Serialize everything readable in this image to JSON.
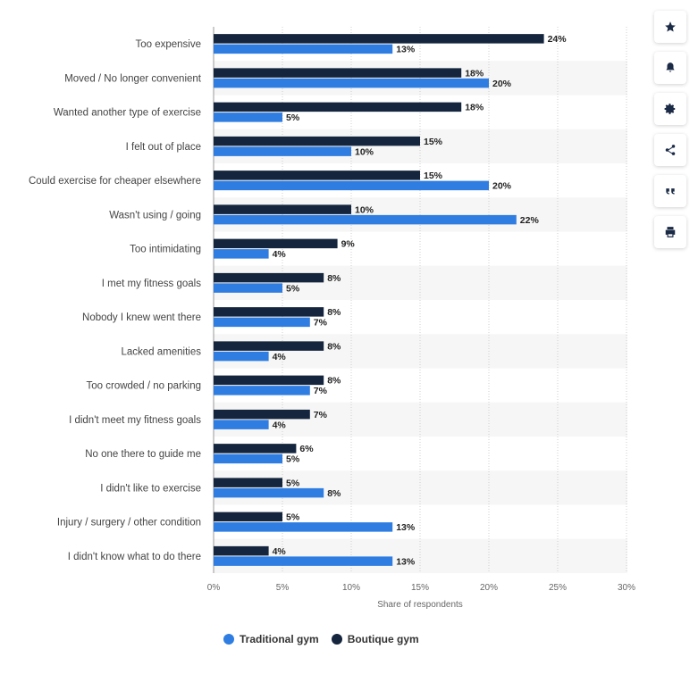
{
  "chart_data": {
    "type": "bar",
    "orientation": "horizontal",
    "title": "",
    "xlabel": "Share of respondents",
    "ylabel": "",
    "xlim": [
      0,
      30
    ],
    "x_ticks": [
      "0%",
      "5%",
      "10%",
      "15%",
      "20%",
      "25%",
      "30%"
    ],
    "x_tick_values": [
      0,
      5,
      10,
      15,
      20,
      25,
      30
    ],
    "grid": true,
    "legend_placement": "bottom",
    "value_suffix": "%",
    "categories": [
      "Too expensive",
      "Moved / No longer convenient",
      "Wanted another type of exercise",
      "I felt out of place",
      "Could exercise for cheaper elsewhere",
      "Wasn't using / going",
      "Too intimidating",
      "I met my fitness goals",
      "Nobody I knew went there",
      "Lacked amenities",
      "Too crowded / no parking",
      "I didn't meet my fitness goals",
      "No one there to guide me",
      "I didn't like to exercise",
      "Injury / surgery / other condition",
      "I didn't know what to do there"
    ],
    "series": [
      {
        "name": "Boutique gym",
        "color": "#14253d",
        "values": [
          24,
          18,
          18,
          15,
          15,
          10,
          9,
          8,
          8,
          8,
          8,
          7,
          6,
          5,
          5,
          4
        ]
      },
      {
        "name": "Traditional gym",
        "color": "#2f7de1",
        "values": [
          13,
          20,
          5,
          10,
          20,
          22,
          4,
          5,
          7,
          4,
          7,
          4,
          5,
          8,
          13,
          13
        ]
      }
    ]
  },
  "legend": {
    "items": [
      {
        "label": "Traditional gym",
        "color": "#2f7de1"
      },
      {
        "label": "Boutique gym",
        "color": "#14253d"
      }
    ]
  },
  "toolbar": {
    "buttons": [
      {
        "name": "star-icon"
      },
      {
        "name": "bell-icon"
      },
      {
        "name": "gear-icon"
      },
      {
        "name": "share-icon"
      },
      {
        "name": "quote-icon"
      },
      {
        "name": "print-icon"
      }
    ]
  }
}
